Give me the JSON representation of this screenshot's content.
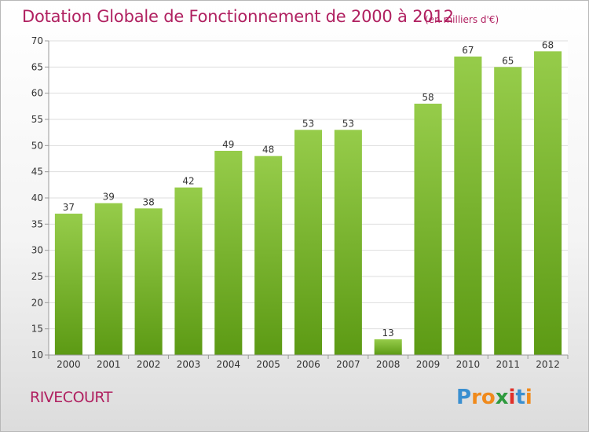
{
  "chart_data": {
    "type": "bar",
    "title": "Dotation Globale de Fonctionnement de 2000 à 2012",
    "subtitle": "(en milliers d'€)",
    "categories": [
      "2000",
      "2001",
      "2002",
      "2003",
      "2004",
      "2005",
      "2006",
      "2007",
      "2008",
      "2009",
      "2010",
      "2011",
      "2012"
    ],
    "values": [
      37,
      39,
      38,
      42,
      49,
      48,
      53,
      53,
      13,
      58,
      67,
      65,
      68
    ],
    "ylim": [
      10,
      70
    ],
    "yticks": [
      10,
      15,
      20,
      25,
      30,
      35,
      40,
      45,
      50,
      55,
      60,
      65,
      70
    ],
    "grid": true,
    "bar_color_top": "#96cc4a",
    "bar_color_bottom": "#5c9a14"
  },
  "commune": "RIVECOURT",
  "logo": {
    "letters": [
      "P",
      "r",
      "o",
      "x",
      "i",
      "t",
      "i"
    ],
    "colors": [
      "#3a8fd0",
      "#f08a1c",
      "#f08a1c",
      "#2e9a3e",
      "#e0302a",
      "#3a8fd0",
      "#f08a1c"
    ]
  }
}
